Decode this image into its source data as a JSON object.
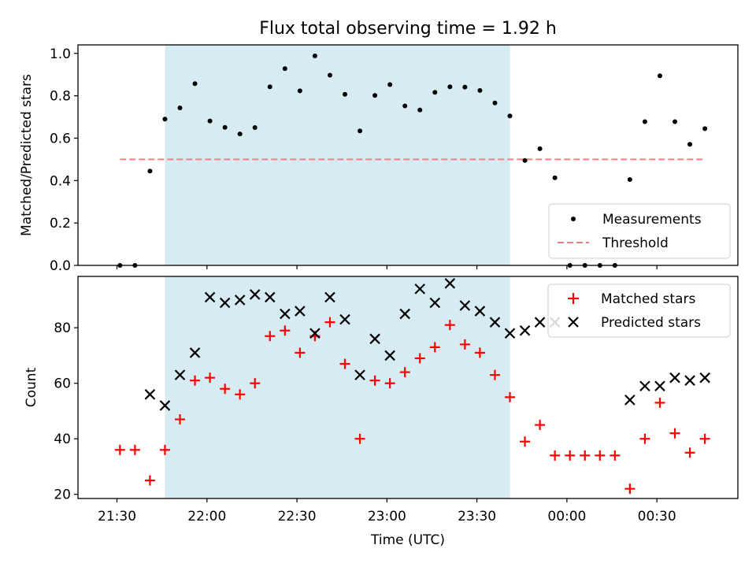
{
  "chart_data": [
    {
      "type": "scatter",
      "title": "Flux total observing time = 1.92 h",
      "xlabel": "",
      "ylabel": "Matched/Predicted stars",
      "ylim": [
        0,
        1.04
      ],
      "yticks": [
        "0.0",
        "0.2",
        "0.4",
        "0.6",
        "0.8",
        "1.0"
      ],
      "ytick_values": [
        0,
        0.2,
        0.4,
        0.6,
        0.8,
        1.0
      ],
      "legend_position": "bottom-right",
      "shaded_x_range": [
        "21:46",
        "23:41"
      ],
      "series": [
        {
          "name": "Measurements",
          "marker": "dot",
          "color": "#000000",
          "x": [
            "21:31",
            "21:36",
            "21:41",
            "21:46",
            "21:51",
            "21:56",
            "22:01",
            "22:06",
            "22:11",
            "22:16",
            "22:21",
            "22:26",
            "22:31",
            "22:36",
            "22:41",
            "22:46",
            "22:51",
            "22:56",
            "23:01",
            "23:06",
            "23:11",
            "23:16",
            "23:21",
            "23:26",
            "23:31",
            "23:36",
            "23:41",
            "23:46",
            "23:51",
            "23:56",
            "00:01",
            "00:06",
            "00:11",
            "00:16",
            "00:21",
            "00:26",
            "00:31",
            "00:36",
            "00:41",
            "00:46"
          ],
          "y": [
            0.0,
            0.0,
            0.445,
            0.69,
            0.743,
            0.857,
            0.681,
            0.651,
            0.62,
            0.65,
            0.842,
            0.928,
            0.823,
            0.988,
            0.897,
            0.807,
            0.634,
            0.802,
            0.853,
            0.752,
            0.733,
            0.816,
            0.842,
            0.841,
            0.825,
            0.766,
            0.705,
            0.495,
            0.55,
            0.413,
            0.0,
            0.0,
            0.0,
            0.0,
            0.405,
            0.678,
            0.894,
            0.678,
            0.571,
            0.645
          ]
        },
        {
          "name": "Threshold",
          "marker": "dashed-line",
          "color": "#f08080",
          "x": [
            "21:31",
            "00:46"
          ],
          "y": [
            0.5,
            0.5
          ]
        }
      ]
    },
    {
      "type": "scatter",
      "title": "",
      "xlabel": "Time (UTC)",
      "ylabel": "Count",
      "ylim": [
        18.5,
        98.5
      ],
      "yticks": [
        "20",
        "40",
        "60",
        "80"
      ],
      "ytick_values": [
        20,
        40,
        60,
        80
      ],
      "xticks": [
        "21:30",
        "22:00",
        "22:30",
        "23:00",
        "23:30",
        "00:00",
        "00:30"
      ],
      "legend_position": "top-right",
      "shaded_x_range": [
        "21:46",
        "23:41"
      ],
      "series": [
        {
          "name": "Matched stars",
          "marker": "plus",
          "color": "#ff0000",
          "x": [
            "21:31",
            "21:36",
            "21:41",
            "21:46",
            "21:51",
            "21:56",
            "22:01",
            "22:06",
            "22:11",
            "22:16",
            "22:21",
            "22:26",
            "22:31",
            "22:36",
            "22:41",
            "22:46",
            "22:51",
            "22:56",
            "23:01",
            "23:06",
            "23:11",
            "23:16",
            "23:21",
            "23:26",
            "23:31",
            "23:36",
            "23:41",
            "23:46",
            "23:51",
            "23:56",
            "00:01",
            "00:06",
            "00:11",
            "00:16",
            "00:21",
            "00:26",
            "00:31",
            "00:36",
            "00:41",
            "00:46"
          ],
          "y": [
            36,
            36,
            25,
            36,
            47,
            61,
            62,
            58,
            56,
            60,
            77,
            79,
            71,
            77,
            82,
            67,
            40,
            61,
            60,
            64,
            69,
            73,
            81,
            74,
            71,
            63,
            55,
            39,
            45,
            34,
            34,
            34,
            34,
            34,
            22,
            40,
            53,
            42,
            35,
            40
          ]
        },
        {
          "name": "Predicted stars",
          "marker": "x",
          "color": "#000000",
          "x": [
            "21:41",
            "21:46",
            "21:51",
            "21:56",
            "22:01",
            "22:06",
            "22:11",
            "22:16",
            "22:21",
            "22:26",
            "22:31",
            "22:36",
            "22:41",
            "22:46",
            "22:51",
            "22:56",
            "23:01",
            "23:06",
            "23:11",
            "23:16",
            "23:21",
            "23:26",
            "23:31",
            "23:36",
            "23:41",
            "23:46",
            "23:51",
            "23:56",
            "00:21",
            "00:26",
            "00:31",
            "00:36",
            "00:41",
            "00:46"
          ],
          "y": [
            56,
            52,
            63,
            71,
            91,
            89,
            90,
            92,
            91,
            85,
            86,
            78,
            91,
            83,
            63,
            76,
            70,
            85,
            94,
            89,
            96,
            88,
            86,
            82,
            78,
            79,
            82,
            82,
            54,
            59,
            59,
            62,
            61,
            62
          ]
        }
      ]
    }
  ]
}
